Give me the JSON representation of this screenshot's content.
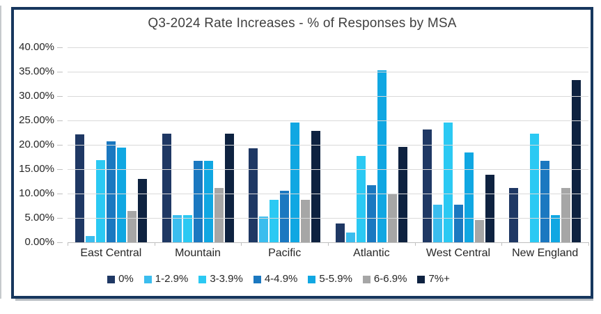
{
  "window": {
    "background": "#FFFFFF",
    "frame_border_color": "#17375E",
    "gridline_color": "#D9D9D9",
    "axis_line_color": "#BFBFBF",
    "text_color": "#262626",
    "title_color": "#3F3F3F"
  },
  "chart_data": {
    "type": "bar",
    "title": "Q3-2024 Rate Increases - % of Responses by MSA",
    "categories": [
      "East Central",
      "Mountain",
      "Pacific",
      "Atlantic",
      "West Central",
      "New England"
    ],
    "series": [
      {
        "name": "0%",
        "color": "#1F3864",
        "values": [
          22.08,
          22.22,
          19.3,
          3.92,
          23.08,
          11.11
        ]
      },
      {
        "name": "1-2.9%",
        "color": "#3BBDEE",
        "values": [
          1.3,
          5.56,
          5.26,
          1.96,
          7.69,
          0
        ]
      },
      {
        "name": "3-3.9%",
        "color": "#2BC9F3",
        "values": [
          16.88,
          5.56,
          8.77,
          17.65,
          24.62,
          22.22
        ]
      },
      {
        "name": "4-4.9%",
        "color": "#1B78C0",
        "values": [
          20.78,
          16.67,
          10.53,
          11.76,
          7.69,
          16.67
        ]
      },
      {
        "name": "5-5.9%",
        "color": "#10A7E2",
        "values": [
          19.48,
          16.67,
          24.56,
          35.29,
          18.46,
          5.56
        ]
      },
      {
        "name": "6-6.9%",
        "color": "#A6A6A6",
        "values": [
          6.49,
          11.11,
          8.77,
          9.8,
          4.62,
          11.11
        ]
      },
      {
        "name": "7%+",
        "color": "#0E2240",
        "values": [
          12.99,
          22.22,
          22.81,
          19.61,
          13.85,
          33.33
        ]
      }
    ],
    "ylim": [
      0,
      40
    ],
    "ytick_step": 5,
    "ytick_labels_top_to_bottom": [
      "40.00%",
      "35.00%",
      "30.00%",
      "25.00%",
      "20.00%",
      "15.00%",
      "10.00%",
      "5.00%",
      "0.00%"
    ],
    "grid": true,
    "legend_position": "bottom"
  }
}
